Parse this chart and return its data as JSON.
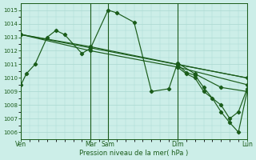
{
  "xlabel": "Pression niveau de la mer( hPa )",
  "bg_color": "#cceee8",
  "grid_color": "#aad8d0",
  "line_color": "#1a5c1a",
  "ylim": [
    1005.5,
    1015.5
  ],
  "yticks": [
    1006,
    1007,
    1008,
    1009,
    1010,
    1011,
    1012,
    1013,
    1014,
    1015
  ],
  "xtick_labels": [
    "Ven",
    "Mar",
    "Sam",
    "Dim",
    "Lun"
  ],
  "xtick_pos": [
    0,
    4,
    5,
    9,
    13
  ],
  "x_total": 13,
  "vlines": [
    0,
    4,
    5,
    9,
    13
  ],
  "series1_x": [
    0,
    0.3,
    0.8,
    1.5,
    2.0,
    2.5,
    3.5,
    4.0,
    5.0,
    5.5,
    6.5,
    7.5,
    8.5,
    9.0,
    10.0,
    11.5,
    13.0
  ],
  "series1_y": [
    1009.5,
    1010.3,
    1011.0,
    1013.0,
    1013.5,
    1013.2,
    1011.8,
    1012.2,
    1015.0,
    1014.8,
    1014.1,
    1009.0,
    1009.2,
    1011.1,
    1010.3,
    1009.3,
    1009.0
  ],
  "series2_x": [
    0,
    4.0,
    9.0,
    13.0
  ],
  "series2_y": [
    1013.2,
    1012.3,
    1011.0,
    1010.0
  ],
  "series3_x": [
    0,
    4.0,
    9.0,
    13.0
  ],
  "series3_y": [
    1013.2,
    1012.0,
    1010.8,
    1009.5
  ],
  "series4_x": [
    0,
    13.0
  ],
  "series4_y": [
    1013.2,
    1010.0
  ],
  "series5_x": [
    9.0,
    9.5,
    10.0,
    10.5,
    11.0,
    11.5,
    12.0,
    12.5,
    13.0
  ],
  "series5_y": [
    1011.0,
    1010.4,
    1010.2,
    1009.3,
    1008.5,
    1007.5,
    1006.7,
    1006.0,
    1009.0
  ],
  "series6_x": [
    9.0,
    9.5,
    10.0,
    10.5,
    11.5,
    12.0,
    12.5,
    13.0
  ],
  "series6_y": [
    1010.8,
    1010.3,
    1010.0,
    1009.0,
    1008.0,
    1007.0,
    1007.5,
    1009.2
  ]
}
